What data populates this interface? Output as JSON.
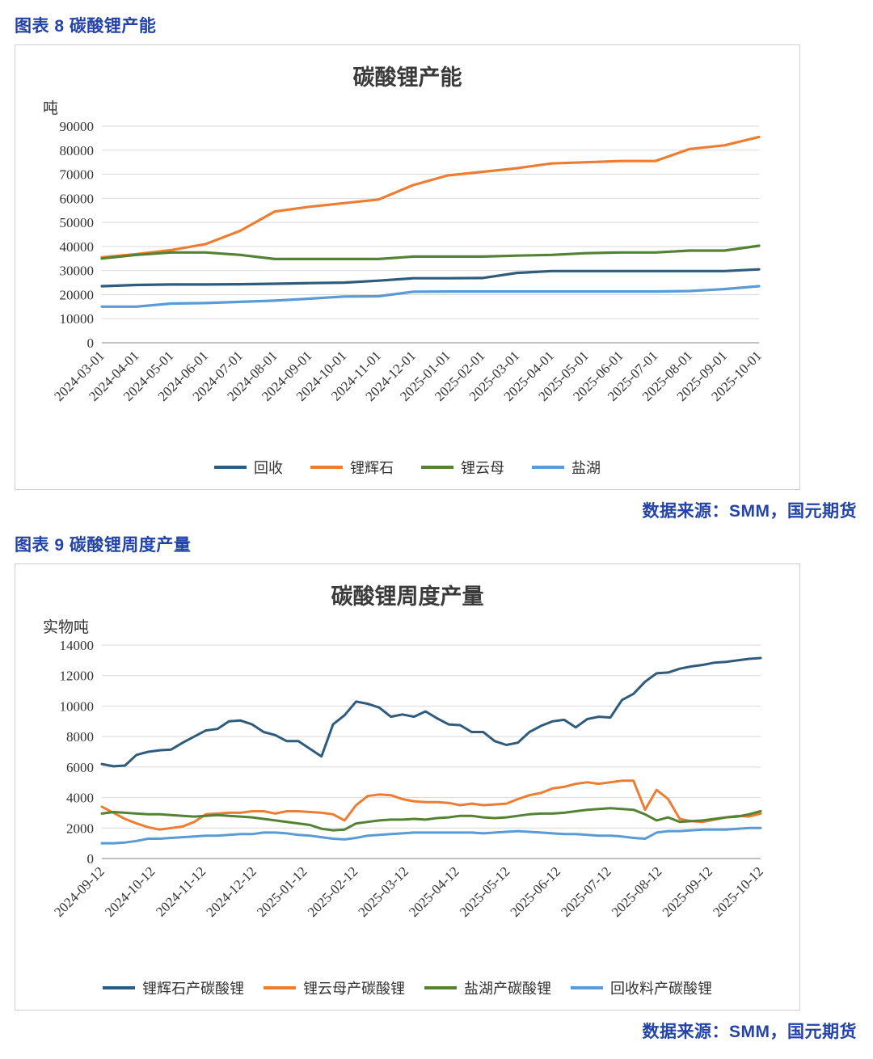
{
  "page": {
    "figure8_heading": "图表 8 碳酸锂产能",
    "figure9_heading": "图表 9 碳酸锂周度产量",
    "source_label_1": "数据来源：SMM，国元期货",
    "source_label_2": "数据来源：SMM，国元期货",
    "heading_color": "#2343A8",
    "source_color": "#2343A8"
  },
  "chart_data": [
    {
      "type": "line",
      "title": "碳酸锂产能",
      "unit_label": "吨",
      "ylabel": "吨",
      "ylim": [
        0,
        90000
      ],
      "ytick_step": 10000,
      "grid": true,
      "legend_position": "bottom",
      "categories": [
        "2024-03-01",
        "2024-04-01",
        "2024-05-01",
        "2024-06-01",
        "2024-07-01",
        "2024-08-01",
        "2024-09-01",
        "2024-10-01",
        "2024-11-01",
        "2024-12-01",
        "2025-01-01",
        "2025-02-01",
        "2025-03-01",
        "2025-04-01",
        "2025-05-01",
        "2025-06-01",
        "2025-07-01",
        "2025-08-01",
        "2025-09-01",
        "2025-10-01"
      ],
      "series": [
        {
          "name": "回收",
          "color": "#2F5B7C",
          "values": [
            23500,
            24000,
            24200,
            24200,
            24300,
            24500,
            24800,
            25000,
            25800,
            26800,
            26800,
            26900,
            29000,
            29800,
            29800,
            29800,
            29800,
            29800,
            29800,
            30500
          ]
        },
        {
          "name": "锂辉石",
          "color": "#ED7D31",
          "values": [
            35500,
            36800,
            38500,
            41000,
            46500,
            54500,
            56500,
            58000,
            59500,
            65500,
            69500,
            71000,
            72500,
            74500,
            75000,
            75500,
            75500,
            80500,
            82000,
            85500
          ]
        },
        {
          "name": "锂云母",
          "color": "#548235",
          "values": [
            35000,
            36500,
            37500,
            37500,
            36500,
            34800,
            34800,
            34800,
            34800,
            35800,
            35800,
            35800,
            36200,
            36500,
            37200,
            37500,
            37500,
            38300,
            38300,
            40300
          ]
        },
        {
          "name": "盐湖",
          "color": "#5B9BD5",
          "values": [
            15000,
            15000,
            16300,
            16500,
            17000,
            17500,
            18300,
            19200,
            19300,
            21200,
            21300,
            21300,
            21300,
            21300,
            21300,
            21300,
            21300,
            21500,
            22300,
            23500
          ]
        }
      ]
    },
    {
      "type": "line",
      "title": "碳酸锂周度产量",
      "unit_label": "实物吨",
      "ylabel": "实物吨",
      "ylim": [
        0,
        14000
      ],
      "ytick_step": 2000,
      "grid": true,
      "legend_position": "bottom",
      "x_tick_labels": [
        "2024-09-12",
        "2024-10-12",
        "2024-11-12",
        "2024-12-12",
        "2025-01-12",
        "2025-02-12",
        "2025-03-12",
        "2025-04-12",
        "2025-05-12",
        "2025-06-12",
        "2025-07-12",
        "2025-08-12",
        "2025-09-12",
        "2025-10-12"
      ],
      "series": [
        {
          "name": "锂辉石产碳酸锂",
          "color": "#2F5B7C",
          "values": [
            6200,
            6050,
            6100,
            6800,
            7000,
            7100,
            7150,
            7600,
            8000,
            8400,
            8500,
            9000,
            9050,
            8800,
            8300,
            8100,
            7700,
            7700,
            7200,
            6700,
            8800,
            9400,
            10300,
            10150,
            9900,
            9300,
            9450,
            9300,
            9650,
            9200,
            8800,
            8750,
            8300,
            8300,
            7700,
            7450,
            7600,
            8300,
            8700,
            9000,
            9100,
            8600,
            9150,
            9300,
            9250,
            10400,
            10800,
            11600,
            12150,
            12200,
            12450,
            12600,
            12700,
            12850,
            12900,
            13000,
            13100,
            13150
          ]
        },
        {
          "name": "锂云母产碳酸锂",
          "color": "#ED7D31",
          "values": [
            3400,
            3000,
            2600,
            2300,
            2050,
            1900,
            2000,
            2100,
            2400,
            2900,
            2950,
            3000,
            3000,
            3100,
            3100,
            2950,
            3100,
            3100,
            3050,
            3000,
            2900,
            2500,
            3500,
            4100,
            4200,
            4150,
            3900,
            3750,
            3700,
            3700,
            3650,
            3500,
            3600,
            3500,
            3550,
            3600,
            3900,
            4150,
            4300,
            4600,
            4700,
            4900,
            5000,
            4900,
            5000,
            5100,
            5100,
            3200,
            4500,
            3900,
            2600,
            2450,
            2400,
            2550,
            2700,
            2800,
            2750,
            2950
          ]
        },
        {
          "name": "盐湖产碳酸锂",
          "color": "#548235",
          "values": [
            2950,
            3050,
            3000,
            2950,
            2900,
            2900,
            2850,
            2800,
            2750,
            2800,
            2850,
            2800,
            2750,
            2700,
            2600,
            2500,
            2400,
            2300,
            2200,
            1950,
            1850,
            1900,
            2300,
            2400,
            2500,
            2550,
            2550,
            2600,
            2550,
            2650,
            2700,
            2800,
            2800,
            2700,
            2650,
            2700,
            2800,
            2900,
            2950,
            2950,
            3000,
            3100,
            3200,
            3250,
            3300,
            3250,
            3200,
            2900,
            2500,
            2700,
            2400,
            2450,
            2500,
            2600,
            2700,
            2750,
            2900,
            3100
          ]
        },
        {
          "name": "回收料产碳酸锂",
          "color": "#5B9BD5",
          "values": [
            1000,
            1000,
            1050,
            1150,
            1300,
            1300,
            1350,
            1400,
            1450,
            1500,
            1500,
            1550,
            1600,
            1600,
            1700,
            1700,
            1650,
            1550,
            1500,
            1400,
            1300,
            1250,
            1350,
            1500,
            1550,
            1600,
            1650,
            1700,
            1700,
            1700,
            1700,
            1700,
            1700,
            1650,
            1700,
            1750,
            1800,
            1750,
            1700,
            1650,
            1600,
            1600,
            1550,
            1500,
            1500,
            1450,
            1350,
            1300,
            1700,
            1800,
            1800,
            1850,
            1900,
            1900,
            1900,
            1950,
            2000,
            2000
          ]
        }
      ]
    }
  ]
}
